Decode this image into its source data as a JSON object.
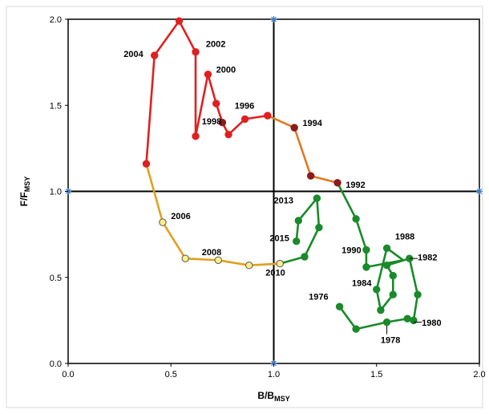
{
  "chart_data": {
    "type": "line",
    "xlabel": "B/B",
    "xlabel_sub": "MSY",
    "ylabel": "F/F",
    "ylabel_sub": "MSY",
    "xlim": [
      0.0,
      2.0
    ],
    "ylim": [
      0.0,
      2.0
    ],
    "xticks": [
      "0.0",
      "0.5",
      "1.0",
      "1.5",
      "2.0"
    ],
    "yticks": [
      "0.0",
      "0.5",
      "1.0",
      "1.5",
      "2.0"
    ],
    "reference_lines": {
      "x": 1.0,
      "y": 1.0
    },
    "segments": [
      {
        "color": "#1a8a2a",
        "points": [
          [
            1.32,
            0.33
          ],
          [
            1.4,
            0.2
          ],
          [
            1.55,
            0.24
          ],
          [
            1.65,
            0.26
          ],
          [
            1.68,
            0.25
          ],
          [
            1.7,
            0.4
          ],
          [
            1.66,
            0.61
          ],
          [
            1.55,
            0.57
          ],
          [
            1.58,
            0.51
          ],
          [
            1.58,
            0.4
          ],
          [
            1.52,
            0.31
          ],
          [
            1.5,
            0.43
          ],
          [
            1.55,
            0.67
          ],
          [
            1.63,
            0.6
          ],
          [
            1.45,
            0.56
          ],
          [
            1.45,
            0.66
          ],
          [
            1.4,
            0.84
          ],
          [
            1.31,
            1.05
          ]
        ]
      },
      {
        "color": "#e07a20",
        "points": [
          [
            1.31,
            1.05
          ],
          [
            1.18,
            1.09
          ],
          [
            1.1,
            1.37
          ],
          [
            0.97,
            1.44
          ]
        ]
      },
      {
        "color": "#e02020",
        "points": [
          [
            0.97,
            1.44
          ],
          [
            0.86,
            1.42
          ],
          [
            0.78,
            1.33
          ],
          [
            0.75,
            1.4
          ],
          [
            0.72,
            1.51
          ],
          [
            0.68,
            1.68
          ],
          [
            0.62,
            1.32
          ],
          [
            0.62,
            1.81
          ],
          [
            0.54,
            1.99
          ],
          [
            0.42,
            1.79
          ],
          [
            0.38,
            1.16
          ]
        ]
      },
      {
        "color": "#e0a020",
        "points": [
          [
            0.38,
            1.16
          ],
          [
            0.46,
            0.82
          ],
          [
            0.57,
            0.61
          ],
          [
            0.73,
            0.6
          ],
          [
            0.88,
            0.57
          ],
          [
            1.03,
            0.58
          ]
        ]
      },
      {
        "color": "#1a8a2a",
        "points": [
          [
            1.03,
            0.58
          ],
          [
            1.15,
            0.62
          ],
          [
            1.22,
            0.79
          ],
          [
            1.21,
            0.96
          ],
          [
            1.12,
            0.83
          ],
          [
            1.11,
            0.71
          ]
        ]
      }
    ],
    "markers": [
      {
        "x": 1.32,
        "y": 0.33,
        "fill": "#1a8a2a"
      },
      {
        "x": 1.4,
        "y": 0.2,
        "fill": "#1a8a2a"
      },
      {
        "x": 1.55,
        "y": 0.24,
        "fill": "#1a8a2a"
      },
      {
        "x": 1.65,
        "y": 0.26,
        "fill": "#1a8a2a"
      },
      {
        "x": 1.68,
        "y": 0.25,
        "fill": "#1a8a2a"
      },
      {
        "x": 1.7,
        "y": 0.4,
        "fill": "#1a8a2a"
      },
      {
        "x": 1.66,
        "y": 0.61,
        "fill": "#1a8a2a"
      },
      {
        "x": 1.55,
        "y": 0.57,
        "fill": "#1a8a2a"
      },
      {
        "x": 1.58,
        "y": 0.51,
        "fill": "#1a8a2a"
      },
      {
        "x": 1.58,
        "y": 0.4,
        "fill": "#1a8a2a"
      },
      {
        "x": 1.52,
        "y": 0.31,
        "fill": "#1a8a2a"
      },
      {
        "x": 1.5,
        "y": 0.43,
        "fill": "#1a8a2a"
      },
      {
        "x": 1.55,
        "y": 0.67,
        "fill": "#1a8a2a"
      },
      {
        "x": 1.45,
        "y": 0.56,
        "fill": "#1a8a2a"
      },
      {
        "x": 1.45,
        "y": 0.66,
        "fill": "#1a8a2a"
      },
      {
        "x": 1.4,
        "y": 0.84,
        "fill": "#1a8a2a"
      },
      {
        "x": 1.31,
        "y": 1.05,
        "fill": "#8b1a1a"
      },
      {
        "x": 1.18,
        "y": 1.09,
        "fill": "#8b1a1a"
      },
      {
        "x": 1.1,
        "y": 1.37,
        "fill": "#8b1a1a"
      },
      {
        "x": 0.97,
        "y": 1.44,
        "fill": "#e02020"
      },
      {
        "x": 0.86,
        "y": 1.42,
        "fill": "#e02020"
      },
      {
        "x": 0.78,
        "y": 1.33,
        "fill": "#e02020"
      },
      {
        "x": 0.75,
        "y": 1.4,
        "fill": "#8b1a1a"
      },
      {
        "x": 0.72,
        "y": 1.51,
        "fill": "#e02020"
      },
      {
        "x": 0.68,
        "y": 1.68,
        "fill": "#e02020"
      },
      {
        "x": 0.62,
        "y": 1.32,
        "fill": "#e02020"
      },
      {
        "x": 0.62,
        "y": 1.81,
        "fill": "#e02020"
      },
      {
        "x": 0.54,
        "y": 1.99,
        "fill": "#e02020"
      },
      {
        "x": 0.42,
        "y": 1.79,
        "fill": "#e02020"
      },
      {
        "x": 0.38,
        "y": 1.16,
        "fill": "#e02020"
      },
      {
        "x": 0.46,
        "y": 0.82,
        "fill": "#ffee88"
      },
      {
        "x": 0.57,
        "y": 0.61,
        "fill": "#ffee88"
      },
      {
        "x": 0.73,
        "y": 0.6,
        "fill": "#ffee88"
      },
      {
        "x": 0.88,
        "y": 0.57,
        "fill": "#ffee88"
      },
      {
        "x": 1.03,
        "y": 0.58,
        "fill": "#ffee88"
      },
      {
        "x": 1.15,
        "y": 0.62,
        "fill": "#1a8a2a"
      },
      {
        "x": 1.22,
        "y": 0.79,
        "fill": "#1a8a2a"
      },
      {
        "x": 1.21,
        "y": 0.96,
        "fill": "#1a8a2a"
      },
      {
        "x": 1.12,
        "y": 0.83,
        "fill": "#1a8a2a"
      },
      {
        "x": 1.11,
        "y": 0.71,
        "fill": "#1a8a2a"
      }
    ],
    "annotations": [
      {
        "text": "2004",
        "x": 0.27,
        "y": 1.78
      },
      {
        "text": "2002",
        "x": 0.67,
        "y": 1.84
      },
      {
        "text": "2000",
        "x": 0.72,
        "y": 1.69
      },
      {
        "text": "1996",
        "x": 0.81,
        "y": 1.48
      },
      {
        "text": "1998",
        "x": 0.65,
        "y": 1.39
      },
      {
        "text": "1994",
        "x": 1.14,
        "y": 1.38
      },
      {
        "text": "1992",
        "x": 1.35,
        "y": 1.02
      },
      {
        "text": "2013",
        "x": 1.0,
        "y": 0.93
      },
      {
        "text": "2006",
        "x": 0.5,
        "y": 0.84
      },
      {
        "text": "2015",
        "x": 0.98,
        "y": 0.71
      },
      {
        "text": "2008",
        "x": 0.65,
        "y": 0.63
      },
      {
        "text": "1988",
        "x": 1.59,
        "y": 0.72
      },
      {
        "text": "1990",
        "x": 1.33,
        "y": 0.64
      },
      {
        "text": "1982",
        "x": 1.7,
        "y": 0.6
      },
      {
        "text": "2010",
        "x": 0.96,
        "y": 0.51
      },
      {
        "text": "1984",
        "x": 1.38,
        "y": 0.45
      },
      {
        "text": "1976",
        "x": 1.17,
        "y": 0.37
      },
      {
        "text": "1980",
        "x": 1.72,
        "y": 0.22
      },
      {
        "text": "1978",
        "x": 1.52,
        "y": 0.12
      }
    ],
    "grid": false
  }
}
